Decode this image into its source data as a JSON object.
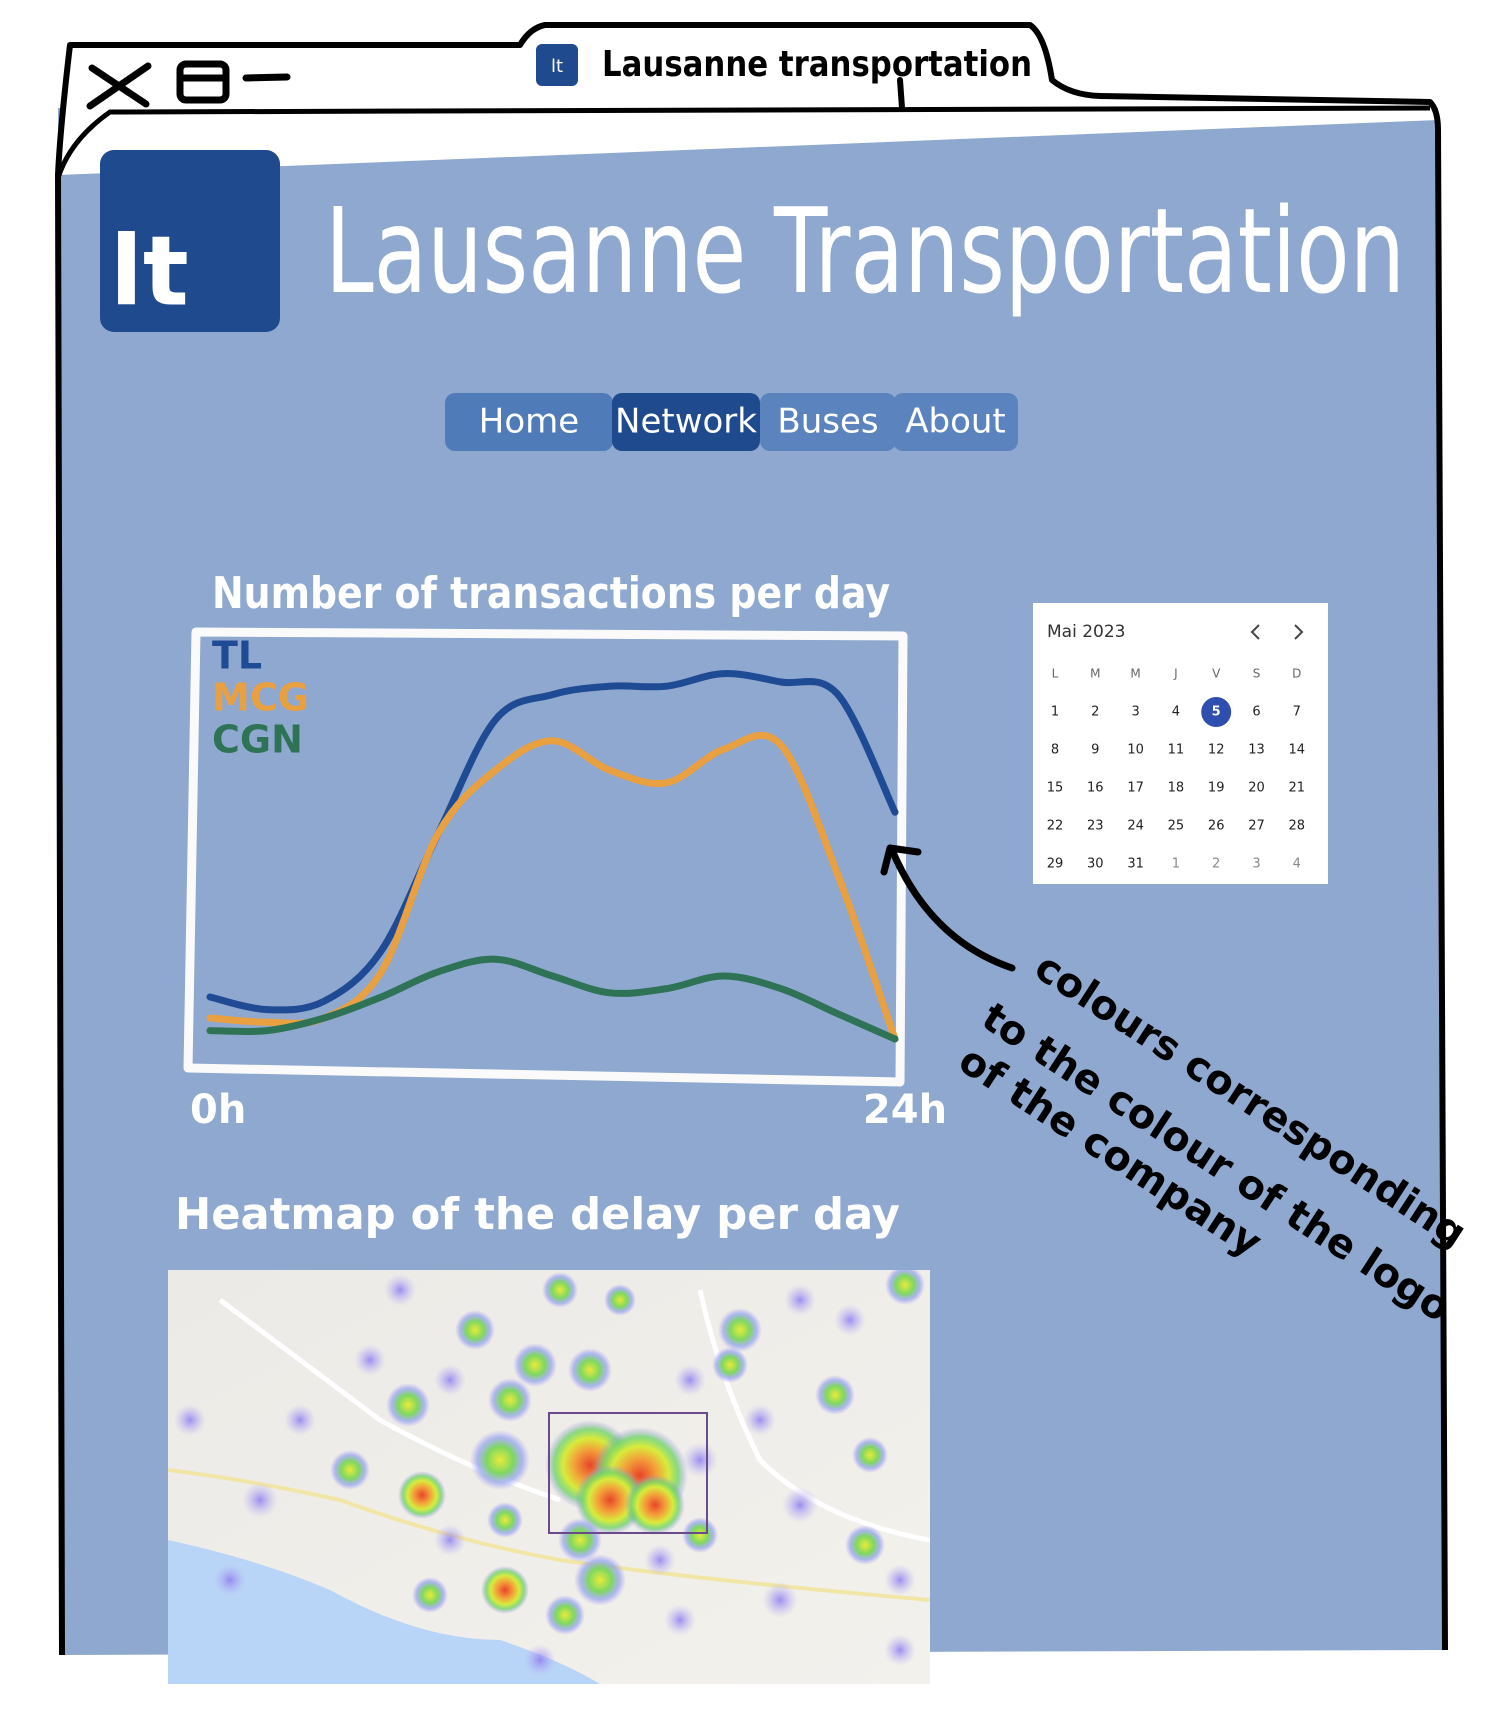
{
  "window": {
    "tab_icon": "lt",
    "tab_title": "Lausanne transportation"
  },
  "header": {
    "logo": "lt",
    "title": "Lausanne Transportation"
  },
  "nav": {
    "items": [
      "Home",
      "Network",
      "Buses",
      "About"
    ],
    "active": 1
  },
  "chart_data": {
    "type": "line",
    "title": "Number of transactions per day",
    "categories": [
      "0h",
      null,
      null,
      null,
      null,
      null,
      null,
      null,
      null,
      null,
      null,
      null,
      "24h"
    ],
    "ylim": [
      0,
      100
    ],
    "series": [
      {
        "name": "TL",
        "color": "#1f4a94",
        "values": [
          15,
          12,
          14,
          26,
          54,
          81,
          87,
          89,
          89,
          92,
          90,
          87,
          59
        ]
      },
      {
        "name": "MCG",
        "color": "#e9a040",
        "values": [
          10,
          9,
          10,
          21,
          54,
          69,
          76,
          69,
          66,
          74,
          75,
          44,
          5
        ]
      },
      {
        "name": "CGN",
        "color": "#2e7355",
        "values": [
          7,
          7,
          10,
          15,
          21,
          24,
          20,
          16,
          17,
          20,
          17,
          11,
          5
        ]
      }
    ]
  },
  "calendar": {
    "month": "Mai 2023",
    "weekdays": [
      "L",
      "M",
      "M",
      "J",
      "V",
      "S",
      "D"
    ],
    "weeks": [
      [
        "1",
        "2",
        "3",
        "4",
        "5",
        "6",
        "7"
      ],
      [
        "8",
        "9",
        "10",
        "11",
        "12",
        "13",
        "14"
      ],
      [
        "15",
        "16",
        "17",
        "18",
        "19",
        "20",
        "21"
      ],
      [
        "22",
        "23",
        "24",
        "25",
        "26",
        "27",
        "28"
      ],
      [
        "29",
        "30",
        "31",
        "1",
        "2",
        "3",
        "4"
      ]
    ],
    "selected": [
      0,
      4
    ]
  },
  "annotation": [
    "colours corresponding",
    "to the colour of the logo",
    "of the company"
  ],
  "heatmap": {
    "title": "Heatmap of the delay per day"
  }
}
